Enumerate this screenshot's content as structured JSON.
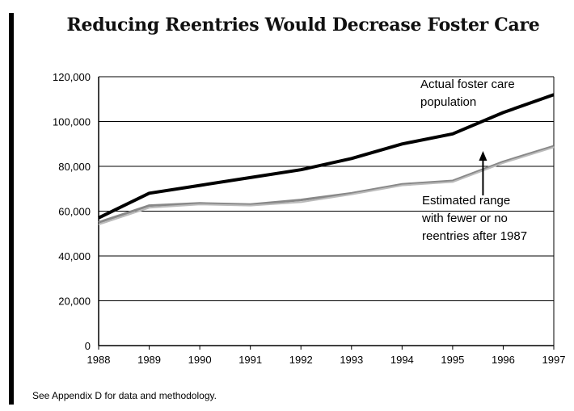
{
  "title": "Reducing Reentries Would Decrease Foster Care",
  "footnote": "See Appendix D for data and methodology.",
  "chart_data": {
    "type": "line",
    "title": "Reducing Reentries Would Decrease Foster Care",
    "x": [
      1988,
      1989,
      1990,
      1991,
      1992,
      1993,
      1994,
      1995,
      1996,
      1997
    ],
    "x_tick_labels": [
      "1988",
      "1989",
      "1990",
      "1991",
      "1992",
      "1993",
      "1994",
      "1995",
      "1996",
      "1997"
    ],
    "y_tick_labels": [
      "0",
      "20,000",
      "40,000",
      "60,000",
      "80,000",
      "100,000",
      "120,000"
    ],
    "ylim": [
      0,
      120000
    ],
    "grid": "horizontal",
    "series": [
      {
        "name": "Actual foster care population",
        "values": [
          57000,
          68000,
          71500,
          75000,
          78500,
          83500,
          90000,
          94500,
          104000,
          112000
        ],
        "color": "#000000"
      },
      {
        "name": "Estimated range with fewer or no reentries after 1987 (upper)",
        "values": [
          55000,
          62500,
          63500,
          63000,
          65000,
          68000,
          72000,
          73500,
          82000,
          89000
        ],
        "color": "#888888"
      },
      {
        "name": "Estimated range with fewer or no reentries after 1987 (lower)",
        "values": [
          54000,
          61500,
          63000,
          62500,
          64000,
          67500,
          71500,
          73000,
          81500,
          88500
        ],
        "color": "#bbbbbb"
      }
    ],
    "annotations": [
      {
        "id": "actual",
        "lines": [
          "Actual foster care",
          "population"
        ]
      },
      {
        "id": "estimated",
        "lines": [
          "Estimated range",
          "with fewer or no",
          "reentries after 1987"
        ]
      }
    ]
  }
}
